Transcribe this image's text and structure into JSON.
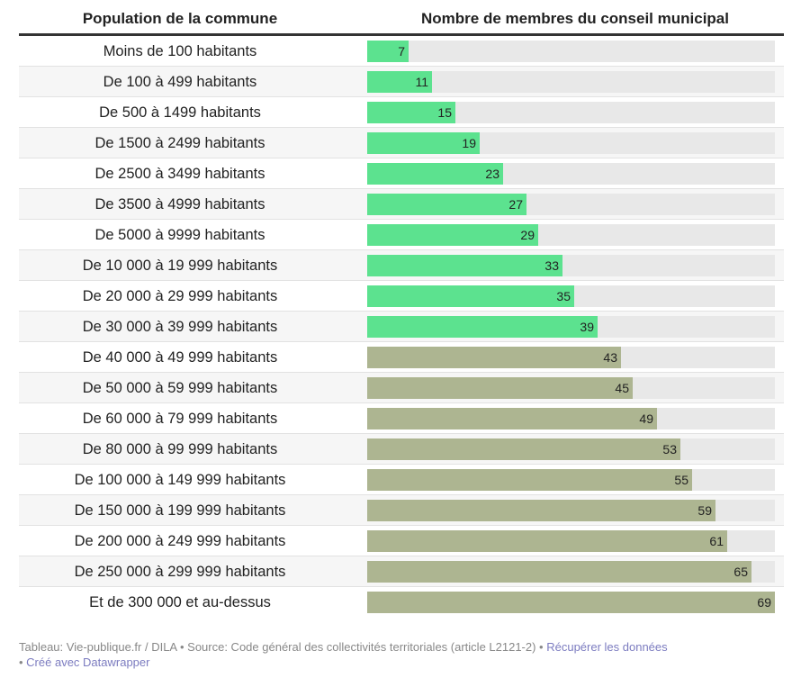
{
  "chart_data": {
    "type": "bar",
    "orientation": "horizontal",
    "title": "",
    "columns": [
      "Population de la commune",
      "Nombre de membres du conseil municipal"
    ],
    "categories": [
      "Moins de 100 habitants",
      "De 100 à 499 habitants",
      "De 500 à 1499 habitants",
      "De 1500 à 2499 habitants",
      "De 2500 à 3499 habitants",
      "De 3500 à 4999 habitants",
      "De 5000 à 9999 habitants",
      "De 10 000 à 19 999 habitants",
      "De 20 000 à 29 999 habitants",
      "De 30 000 à 39 999 habitants",
      "De 40 000 à 49 999 habitants",
      "De 50 000 à 59 999 habitants",
      "De 60 000 à 79 999 habitants",
      "De 80 000 à 99 999 habitants",
      "De 100 000 à 149 999 habitants",
      "De 150 000 à 199 999 habitants",
      "De 200 000 à 249 999 habitants",
      "De 250 000 à 299 999 habitants",
      "Et de 300 000 et au-dessus"
    ],
    "values": [
      7,
      11,
      15,
      19,
      23,
      27,
      29,
      33,
      35,
      39,
      43,
      45,
      49,
      53,
      55,
      59,
      61,
      65,
      69
    ],
    "xlim": [
      0,
      69
    ],
    "colors": {
      "up_to_39999": "#5ce28f",
      "from_40000": "#adb591",
      "track": "#e8e8e8"
    },
    "color_threshold_index": 10
  },
  "footer": {
    "source": "Tableau: Vie-publique.fr / DILA • Source: Code général des collectivités territoriales (article L2121-2) • ",
    "download_link": "Récupérer les données",
    "separator": "• ",
    "made_with": "Créé avec Datawrapper"
  }
}
